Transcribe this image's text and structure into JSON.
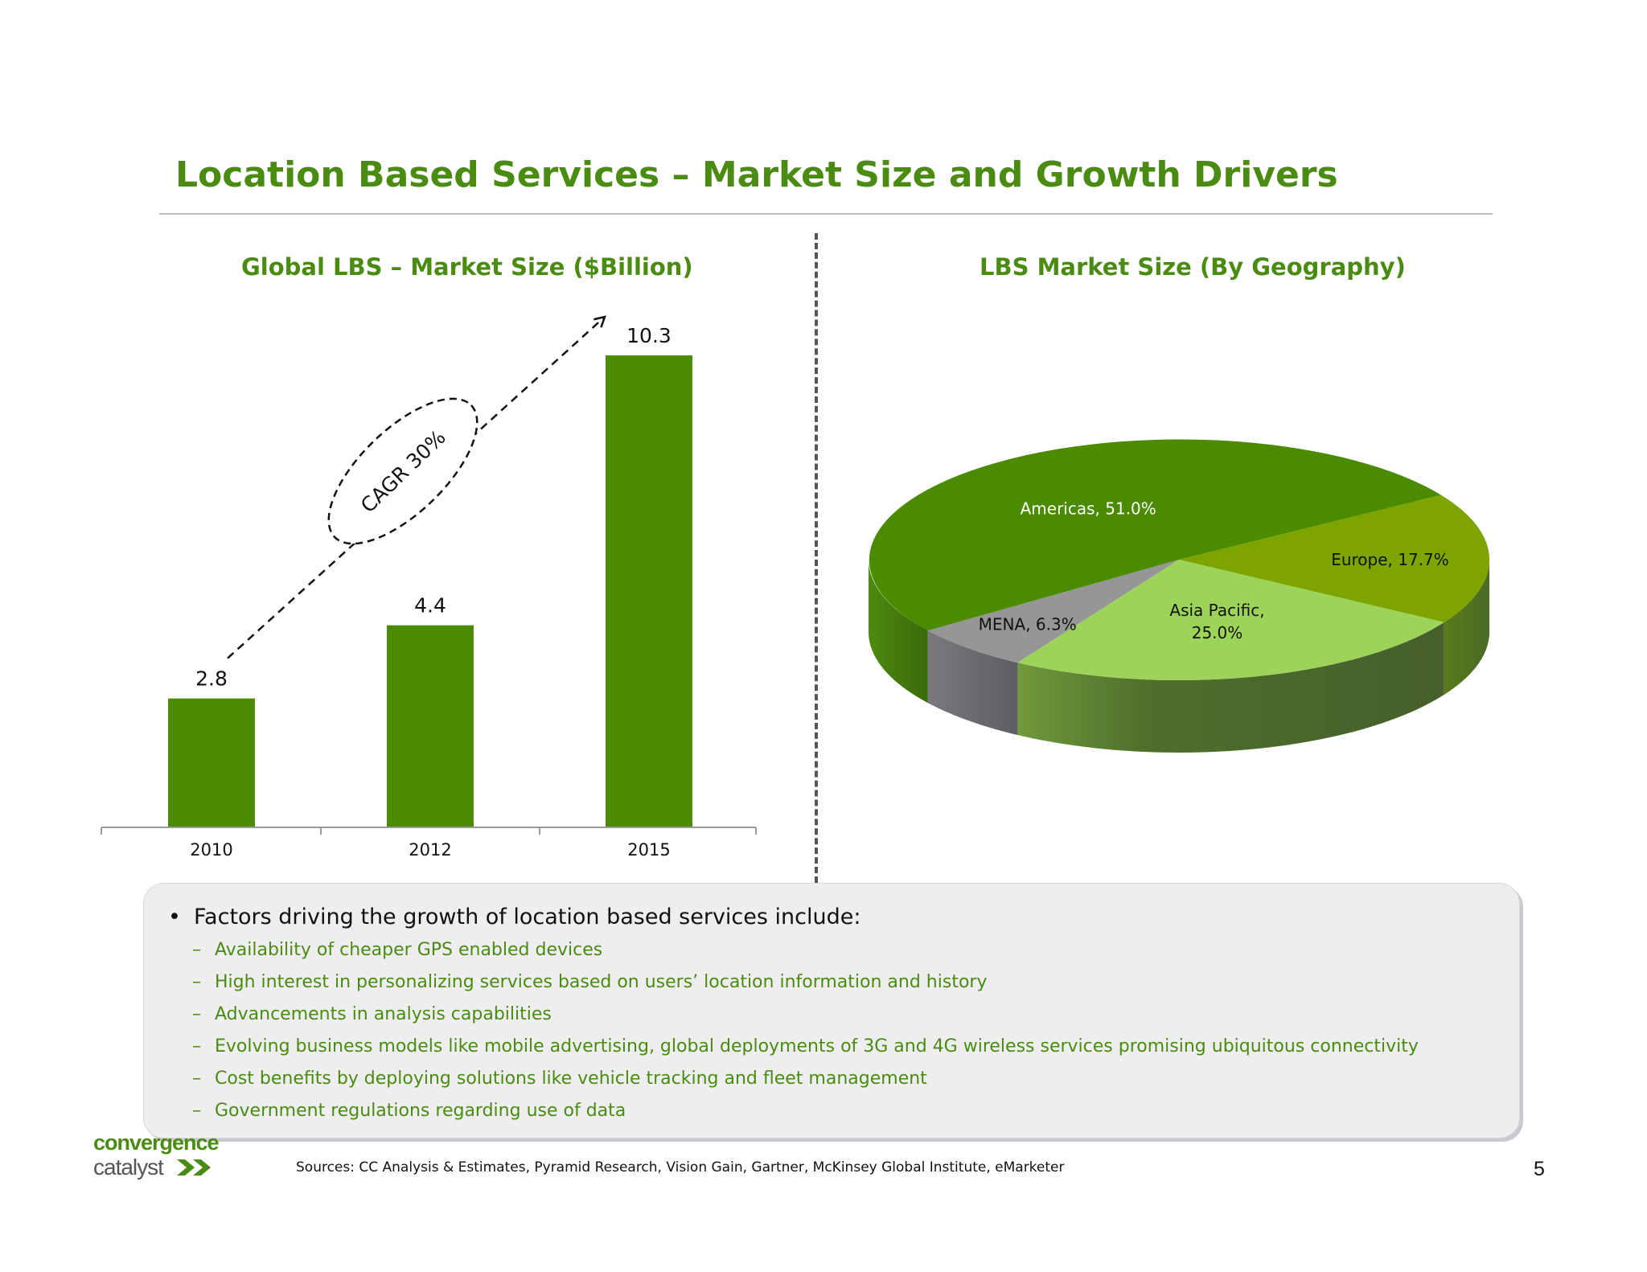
{
  "slide": {
    "title": "Location Based Services – Market Size and Growth Drivers",
    "page_number": "5",
    "sources": "Sources: CC Analysis & Estimates, Pyramid Research, Vision Gain, Gartner, McKinsey Global Institute, eMarketer"
  },
  "logo": {
    "line1": "convergence",
    "line2": "catalyst"
  },
  "factors": {
    "heading": "Factors driving the growth of location based services include:",
    "bullet": "•",
    "dash": "–",
    "items": [
      "Availability of cheaper GPS enabled devices",
      "High interest in personalizing services based on users’ location information and history",
      "Advancements in analysis capabilities",
      "Evolving business models like mobile advertising, global deployments of 3G and 4G wireless services promising ubiquitous connectivity",
      "Cost benefits by deploying solutions like vehicle tracking and fleet management",
      "Government regulations regarding use of data"
    ]
  },
  "colors": {
    "brand_green": "#4a8b12",
    "bar": "#4a8b00",
    "americas": "#4a8b00",
    "europe": "#7ea400",
    "asia_pacific": "#9cd45a",
    "mena": "#969696"
  },
  "chart_data": [
    {
      "type": "bar",
      "title": "Global LBS – Market Size ($Billion)",
      "categories": [
        "2010",
        "2012",
        "2015"
      ],
      "values": [
        2.8,
        4.4,
        10.3
      ],
      "data_labels": [
        "2.8",
        "4.4",
        "10.3"
      ],
      "annotation": "CAGR 30%",
      "ylim": [
        0,
        10.3
      ],
      "grid": false,
      "legend": "none"
    },
    {
      "type": "pie",
      "title": "LBS Market Size (By Geography)",
      "slices": [
        {
          "name": "Americas",
          "value": 51.0,
          "label": "Americas, 51.0%"
        },
        {
          "name": "Europe",
          "value": 17.7,
          "label": "Europe, 17.7%"
        },
        {
          "name": "Asia Pacific",
          "value": 25.0,
          "label_lines": [
            "Asia Pacific,",
            "25.0%"
          ]
        },
        {
          "name": "MENA",
          "value": 6.3,
          "label": "MENA, 6.3%"
        }
      ],
      "style": "3d",
      "legend": "none"
    }
  ]
}
